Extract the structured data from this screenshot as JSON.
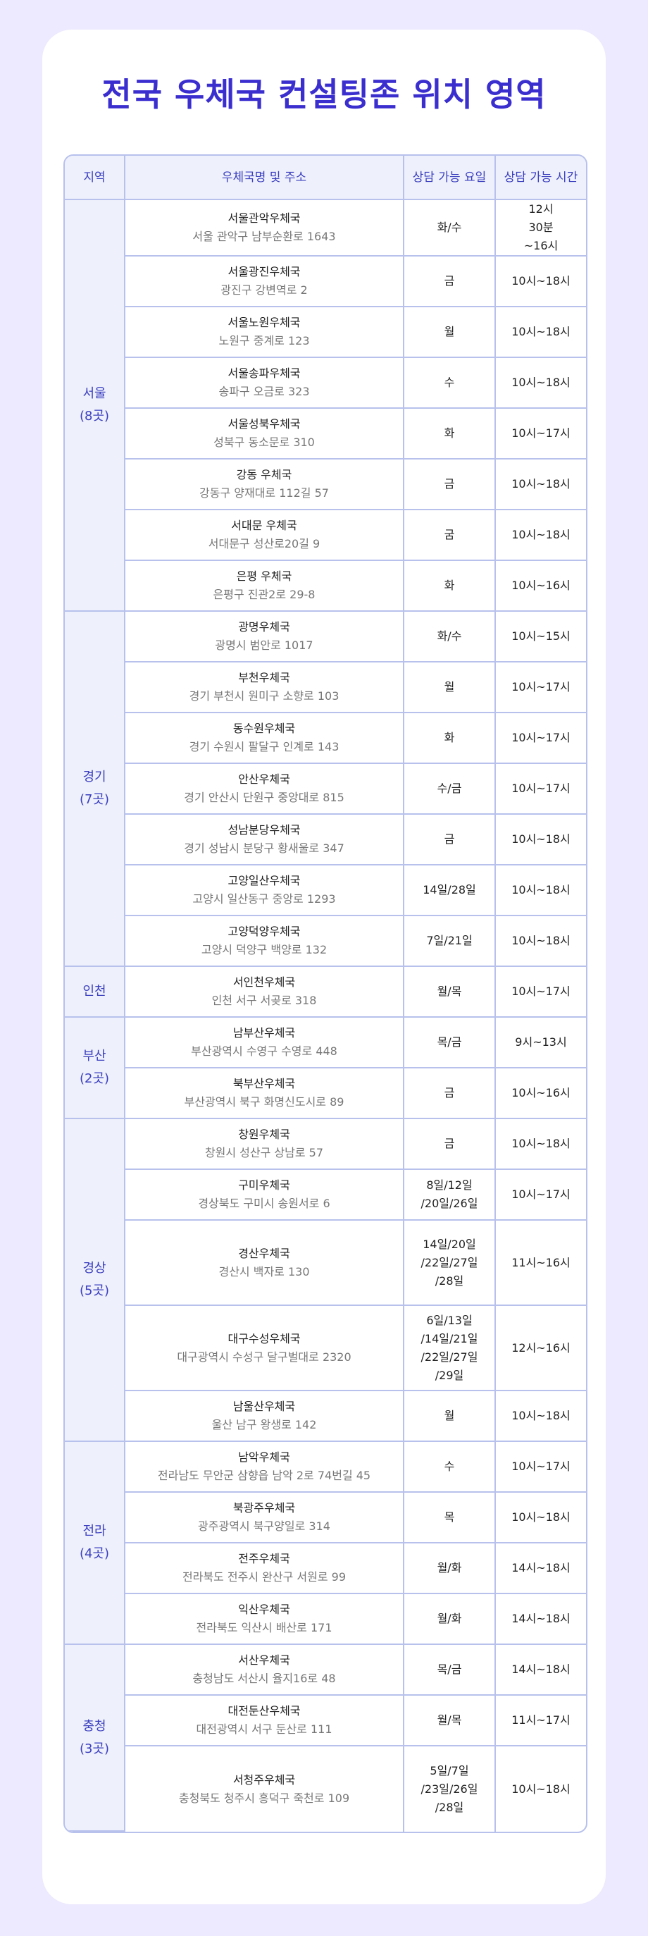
{
  "title": "전국 우체국 컨설팅존 위치 영역",
  "headers": [
    "지역",
    "우체국명 및 주소",
    "상담 가능 요일",
    "상담 가능 시간"
  ],
  "regions": [
    {
      "name": "서울",
      "count": "(8곳)",
      "offices": [
        {
          "name": "서울관악우체국",
          "addr": "서울 관악구 남부순환로 1643",
          "days": "화/수",
          "hours": "12시 30분 ~16시"
        },
        {
          "name": "서울광진우체국",
          "addr": "광진구 강변역로 2",
          "days": "금",
          "hours": "10시~18시"
        },
        {
          "name": "서울노원우체국",
          "addr": "노원구 중계로 123",
          "days": "월",
          "hours": "10시~18시"
        },
        {
          "name": "서울송파우체국",
          "addr": "송파구 오금로 323",
          "days": "수",
          "hours": "10시~18시"
        },
        {
          "name": "서울성북우체국",
          "addr": "성북구 동소문로 310",
          "days": "화",
          "hours": "10시~17시"
        },
        {
          "name": "강동 우체국",
          "addr": "강동구 양재대로 112길 57",
          "days": "금",
          "hours": "10시~18시"
        },
        {
          "name": "서대문 우체국",
          "addr": "서대문구 성산로20길 9",
          "days": "굼",
          "hours": "10시~18시"
        },
        {
          "name": "은평 우체국",
          "addr": "은평구 진관2로 29-8",
          "days": "화",
          "hours": "10시~16시"
        }
      ]
    },
    {
      "name": "경기",
      "count": "(7곳)",
      "offices": [
        {
          "name": "광명우체국",
          "addr": "광명시 범안로 1017",
          "days": "화/수",
          "hours": "10시~15시"
        },
        {
          "name": "부천우체국",
          "addr": "경기 부천시 원미구 소향로 103",
          "days": "월",
          "hours": "10시~17시"
        },
        {
          "name": "동수원우체국",
          "addr": "경기 수원시 팔달구 인계로 143",
          "days": "화",
          "hours": "10시~17시"
        },
        {
          "name": "안산우체국",
          "addr": "경기 안산시 단원구 중앙대로 815",
          "days": "수/금",
          "hours": "10시~17시"
        },
        {
          "name": "성남분당우체국",
          "addr": "경기 성남시 분당구 황새울로 347",
          "days": "금",
          "hours": "10시~18시"
        },
        {
          "name": "고양일산우체국",
          "addr": "고양시 일산동구 중앙로 1293",
          "days": "14일/28일",
          "hours": "10시~18시"
        },
        {
          "name": "고양덕양우체국",
          "addr": "고양시 덕양구 백양로 132",
          "days": "7일/21일",
          "hours": "10시~18시"
        }
      ]
    },
    {
      "name": "인천",
      "count": "",
      "offices": [
        {
          "name": "서인천우체국",
          "addr": "인천 서구 서곶로 318",
          "days": "월/목",
          "hours": "10시~17시"
        }
      ]
    },
    {
      "name": "부산",
      "count": "(2곳)",
      "offices": [
        {
          "name": "남부산우체국",
          "addr": "부산광역시 수영구 수영로 448",
          "days": "목/금",
          "hours": "9시~13시"
        },
        {
          "name": "북부산우체국",
          "addr": "부산광역시 북구 화명신도시로 89",
          "days": "금",
          "hours": "10시~16시"
        }
      ]
    },
    {
      "name": "경상",
      "count": "(5곳)",
      "offices": [
        {
          "name": "창원우체국",
          "addr": "창원시 성산구 상남로 57",
          "days": "금",
          "hours": "10시~18시"
        },
        {
          "name": "구미우체국",
          "addr": "경상북도 구미시 송원서로 6",
          "days": "8일/12일 /20일/26일",
          "hours": "10시~17시"
        },
        {
          "name": "경산우체국",
          "addr": "경산시 백자로 130",
          "days": "14일/20일 /22일/27일 /28일",
          "hours": "11시~16시"
        },
        {
          "name": "대구수성우체국",
          "addr": "대구광역시 수성구 달구벌대로 2320",
          "days": "6일/13일 /14일/21일 /22일/27일 /29일",
          "hours": "12시~16시"
        },
        {
          "name": "남울산우체국",
          "addr": "울산 남구 왕생로 142",
          "days": "월",
          "hours": "10시~18시"
        }
      ]
    },
    {
      "name": "전라",
      "count": "(4곳)",
      "offices": [
        {
          "name": "남악우체국",
          "addr": "전라남도 무안군 삼향읍 남악 2로 74번길 45",
          "days": "수",
          "hours": "10시~17시"
        },
        {
          "name": "북광주우체국",
          "addr": "광주광역시 북구양일로 314",
          "days": "목",
          "hours": "10시~18시"
        },
        {
          "name": "전주우체국",
          "addr": "전라북도 전주시 완산구 서원로 99",
          "days": "월/화",
          "hours": "14시~18시"
        },
        {
          "name": "익산우체국",
          "addr": "전라북도 익산시 배산로 171",
          "days": "월/화",
          "hours": "14시~18시"
        }
      ]
    },
    {
      "name": "충청",
      "count": "(3곳)",
      "offices": [
        {
          "name": "서산우체국",
          "addr": "충청남도 서산시 율지16로 48",
          "days": "목/금",
          "hours": "14시~18시"
        },
        {
          "name": "대전둔산우체국",
          "addr": "대전광역시 서구 둔산로 111",
          "days": "월/목",
          "hours": "11시~17시"
        },
        {
          "name": "서청주우체국",
          "addr": "충청북도 청주시 흥덕구 죽천로 109",
          "days": "5일/7일 /23일/26일 /28일",
          "hours": "10시~18시"
        }
      ]
    }
  ]
}
